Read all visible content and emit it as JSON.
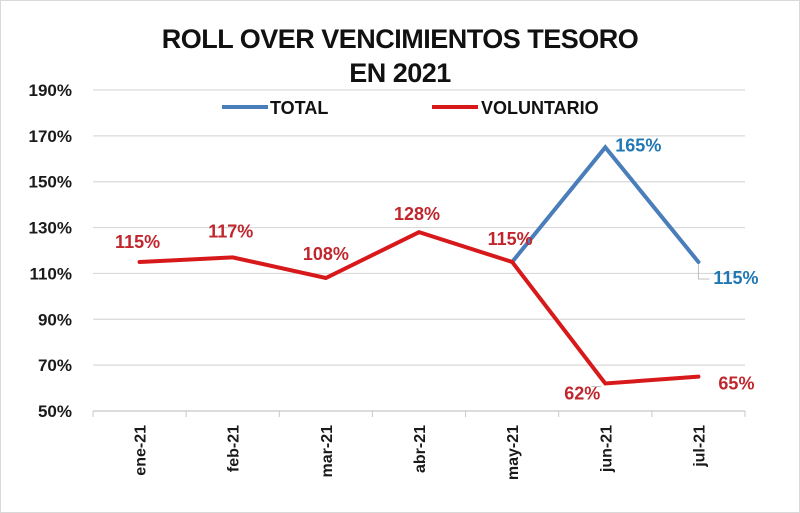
{
  "chart_data": {
    "type": "line",
    "title": "ROLL OVER VENCIMIENTOS TESORO EN 2021",
    "title_lines": [
      "ROLL OVER VENCIMIENTOS TESORO",
      "EN 2021"
    ],
    "xlabel": "",
    "ylabel": "",
    "categories": [
      "ene-21",
      "feb-21",
      "mar-21",
      "abr-21",
      "may-21",
      "jun-21",
      "jul-21"
    ],
    "series": [
      {
        "name": "TOTAL",
        "color": "#4a7ebb",
        "label_color": "#1f77b4",
        "values": [
          null,
          null,
          null,
          null,
          115,
          165,
          115
        ],
        "labels": [
          null,
          null,
          null,
          null,
          null,
          "165%",
          "115%"
        ]
      },
      {
        "name": "VOLUNTARIO",
        "color": "#d7191c",
        "label_color": "#c0272d",
        "values": [
          115,
          117,
          108,
          128,
          115,
          62,
          65
        ],
        "labels": [
          "115%",
          "117%",
          "108%",
          "128%",
          "115%",
          "62%",
          "65%"
        ]
      }
    ],
    "yticks": [
      "190%",
      "170%",
      "150%",
      "130%",
      "110%",
      "90%",
      "70%",
      "50%"
    ],
    "ylim": [
      50,
      190
    ],
    "grid": true,
    "legend_position": "top"
  }
}
